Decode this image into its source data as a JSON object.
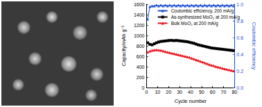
{
  "chart_data": {
    "type": "line",
    "xlabel": "Cycle number",
    "ylabel": "Capacity/mAh g⁻¹",
    "y2label": "Coulombic efficiency",
    "x": [
      1,
      3,
      5,
      7,
      9,
      11,
      13,
      15,
      17,
      19,
      21,
      23,
      25,
      27,
      29,
      31,
      33,
      35,
      37,
      39,
      41,
      43,
      45,
      47,
      49,
      51,
      53,
      55,
      57,
      59,
      61,
      63,
      65,
      67,
      69,
      71,
      73,
      75,
      77,
      79
    ],
    "xlim": [
      0,
      80
    ],
    "xticks": [
      0,
      10,
      20,
      30,
      40,
      50,
      60,
      70,
      80
    ],
    "ylim": [
      0,
      1600
    ],
    "yticks": [
      0,
      200,
      400,
      600,
      800,
      1000,
      1200,
      1400,
      1600
    ],
    "y2lim": [
      0,
      1
    ],
    "y2ticks": [
      {
        "value": 0,
        "label": "0.0"
      },
      0.2,
      0.4,
      0.6,
      0.8,
      {
        "value": 1,
        "label": "1.0"
      }
    ],
    "legend": "upper right",
    "series": [
      {
        "name": "Coulombic efficiency, 200 mA/g",
        "color": "#1f4fd8",
        "marker": "triangle",
        "axis": "y2",
        "values": [
          0.82,
          0.97,
          0.98,
          0.98,
          0.99,
          0.98,
          0.99,
          0.98,
          0.99,
          0.98,
          0.99,
          0.98,
          0.99,
          0.98,
          0.99,
          0.98,
          0.99,
          0.98,
          0.99,
          0.98,
          0.99,
          0.98,
          0.99,
          0.98,
          0.99,
          0.98,
          0.99,
          0.98,
          0.99,
          0.98,
          0.99,
          0.98,
          0.99,
          0.98,
          0.99,
          0.98,
          0.99,
          0.98,
          0.99,
          0.98
        ]
      },
      {
        "name": "As-synthesized MoO₂ at 200 mA/g",
        "color": "#000000",
        "marker": "square",
        "values": [
          860,
          830,
          820,
          840,
          860,
          875,
          885,
          890,
          895,
          900,
          905,
          905,
          900,
          905,
          900,
          895,
          890,
          885,
          880,
          870,
          860,
          850,
          835,
          820,
          810,
          800,
          790,
          780,
          770,
          760,
          755,
          750,
          745,
          740,
          735,
          730,
          725,
          720,
          715,
          710
        ]
      },
      {
        "name": "Bulk MoO₂ at 200 mA/g",
        "color": "#e8111b",
        "marker": "triangle",
        "values": [
          680,
          700,
          715,
          720,
          725,
          720,
          715,
          705,
          690,
          680,
          670,
          660,
          650,
          640,
          630,
          620,
          610,
          600,
          590,
          580,
          565,
          550,
          535,
          520,
          505,
          490,
          475,
          460,
          445,
          430,
          420,
          405,
          395,
          385,
          370,
          360,
          350,
          340,
          330,
          320
        ]
      }
    ]
  }
}
